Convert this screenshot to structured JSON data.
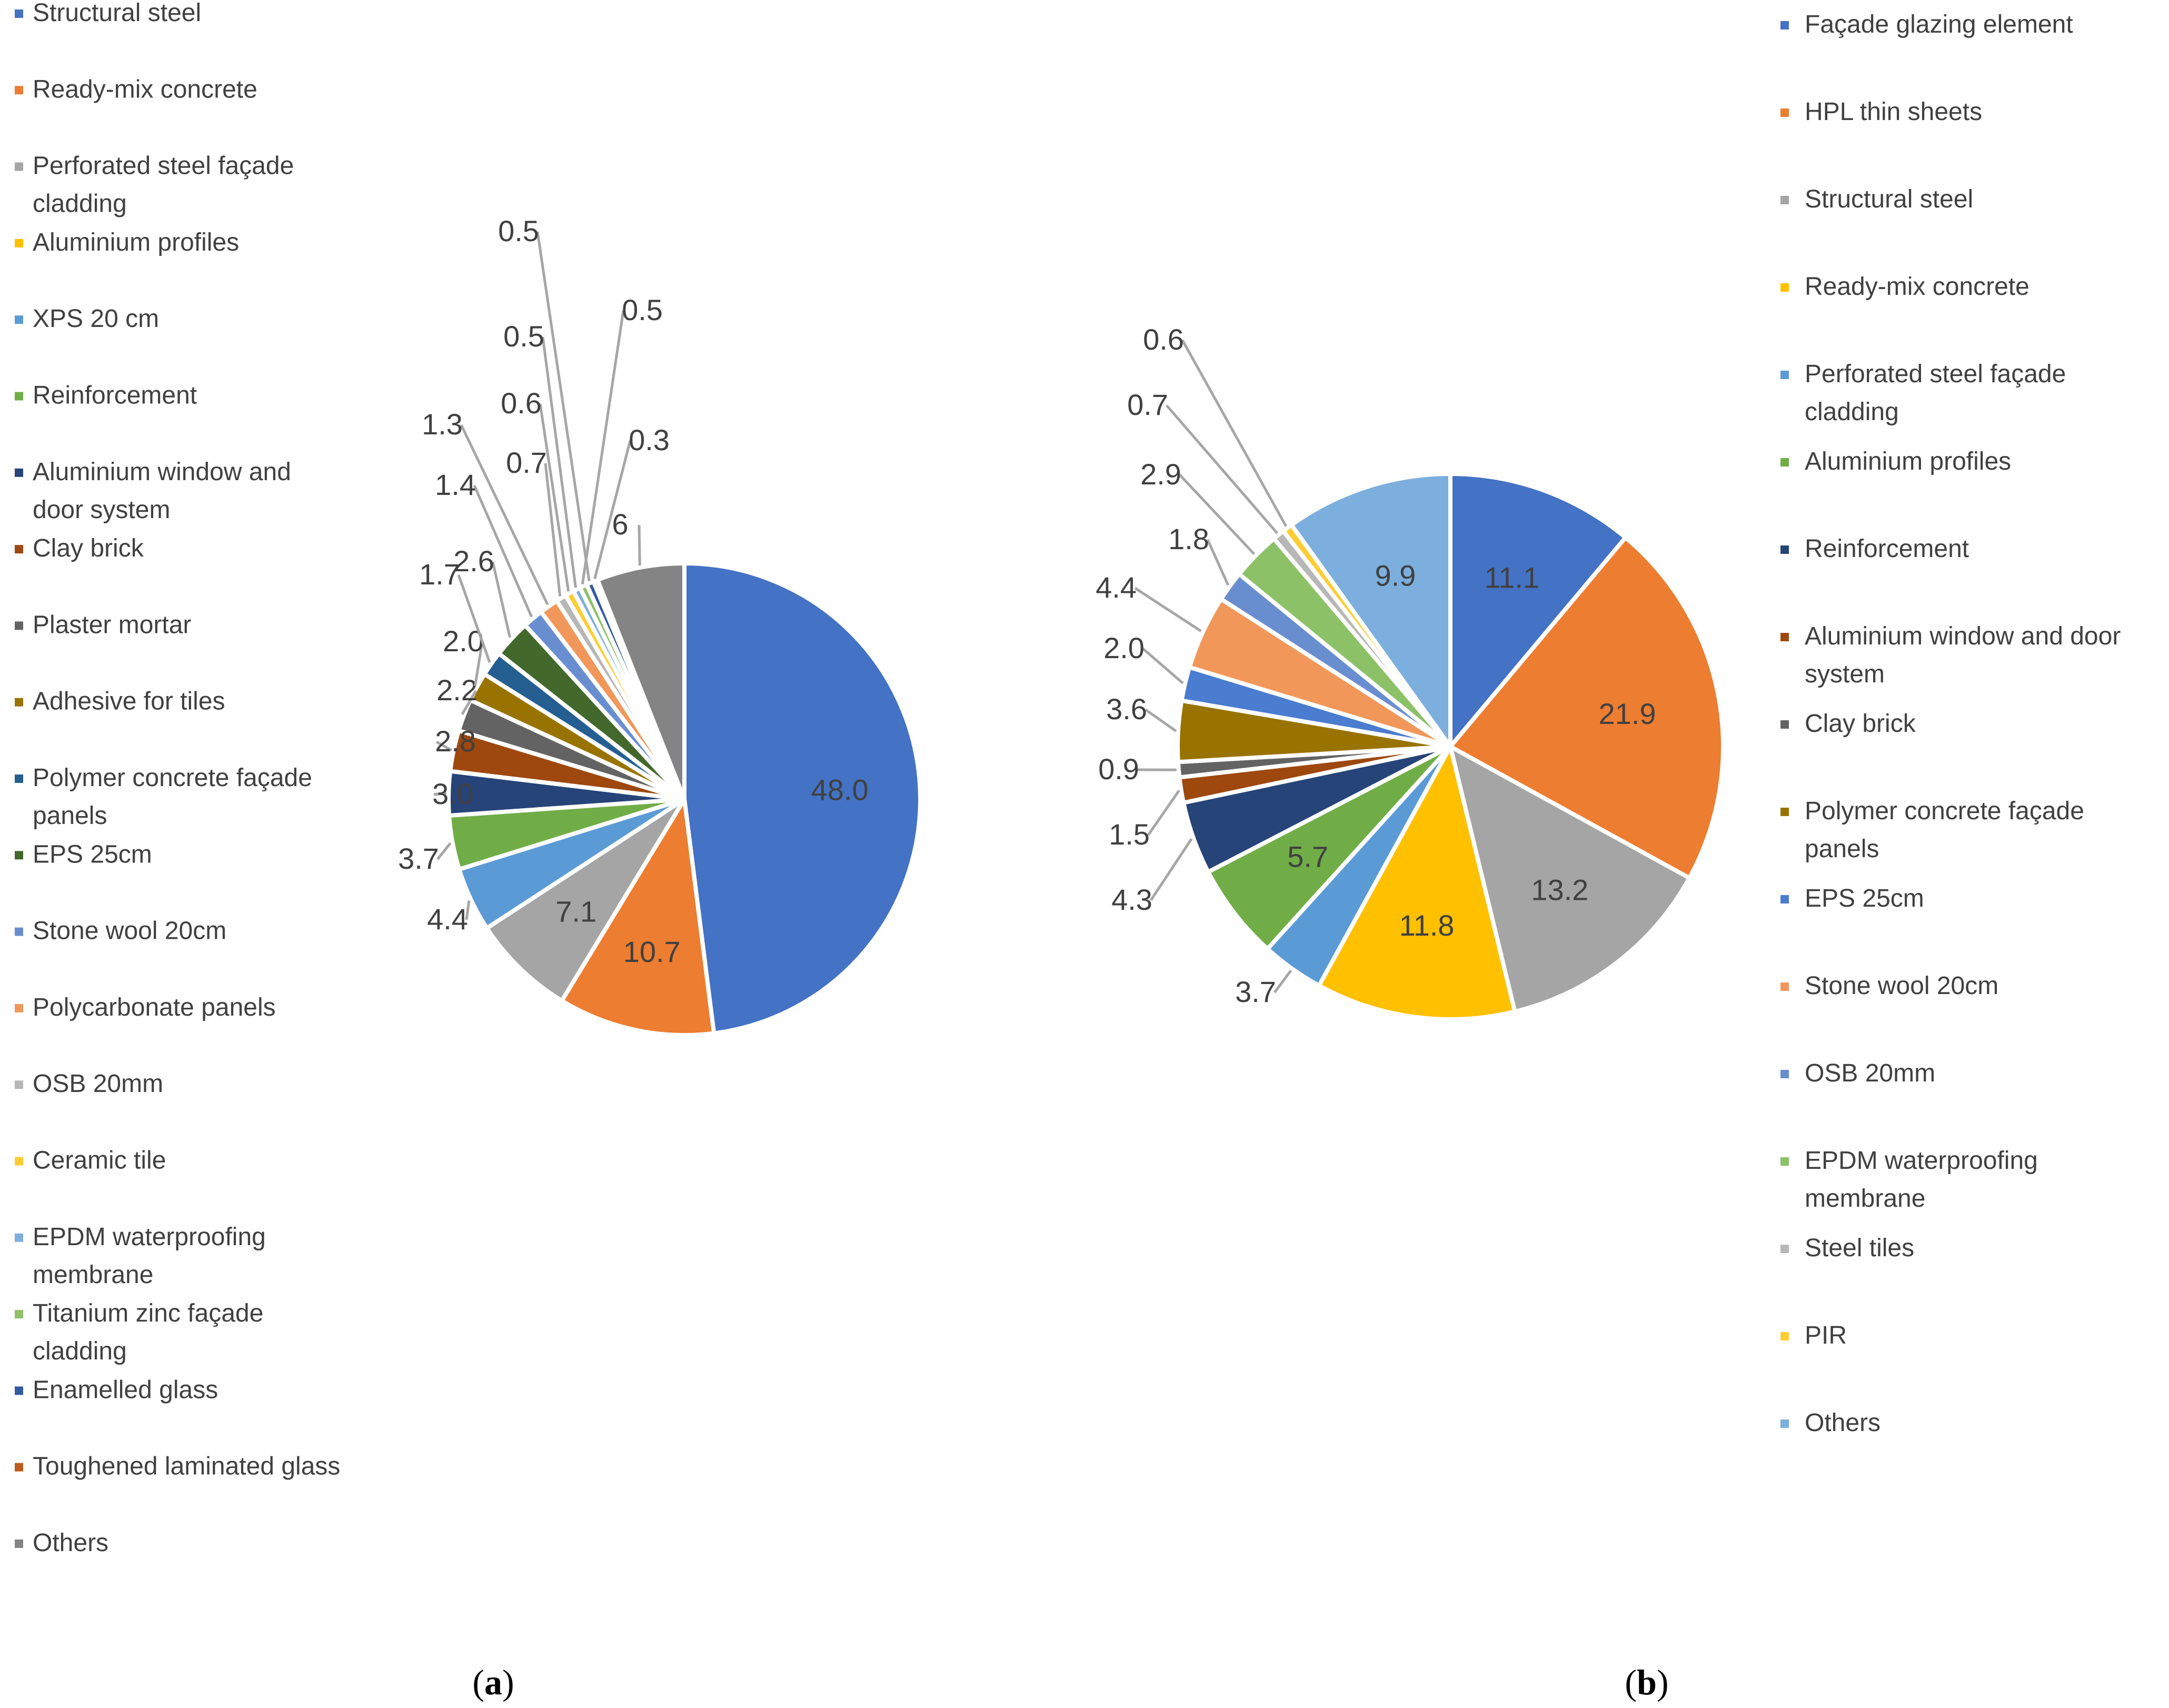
{
  "chart_data": [
    {
      "type": "pie",
      "panel_label": "a",
      "legend_position": "left",
      "categories": [
        "Structural steel",
        "Ready-mix concrete",
        "Perforated steel façade cladding",
        "Aluminium profiles",
        "XPS 20 cm",
        "Reinforcement",
        "Aluminium window and door system",
        "Clay brick",
        "Plaster mortar",
        "Adhesive for tiles",
        "Polymer concrete façade panels",
        "EPS 25cm",
        "Stone wool 20cm",
        "Polycarbonate panels",
        "OSB 20mm",
        "Ceramic tile",
        "EPDM waterproofing membrane",
        "Titanium zinc façade cladding",
        "Enamelled glass",
        "Toughened laminated glass",
        "Others"
      ],
      "legend_lines": [
        [
          "Structural steel"
        ],
        [
          "Ready-mix concrete"
        ],
        [
          "Perforated steel façade",
          "cladding"
        ],
        [
          "Aluminium profiles"
        ],
        [
          "XPS 20 cm"
        ],
        [
          "Reinforcement"
        ],
        [
          "Aluminium window and",
          "door system"
        ],
        [
          "Clay brick"
        ],
        [
          "Plaster mortar"
        ],
        [
          "Adhesive for tiles"
        ],
        [
          "Polymer concrete façade",
          "panels"
        ],
        [
          "EPS 25cm"
        ],
        [
          "Stone wool 20cm"
        ],
        [
          "Polycarbonate panels"
        ],
        [
          "OSB 20mm"
        ],
        [
          "Ceramic tile"
        ],
        [
          "EPDM waterproofing",
          "membrane"
        ],
        [
          "Titanium zinc façade",
          "cladding"
        ],
        [
          "Enamelled glass"
        ],
        [
          "Toughened laminated glass"
        ],
        [
          "Others"
        ]
      ],
      "values": [
        48.0,
        10.7,
        7.1,
        0.0,
        4.4,
        3.7,
        3.0,
        2.8,
        2.2,
        2.0,
        1.7,
        2.6,
        1.4,
        1.3,
        0.7,
        0.6,
        0.5,
        0.5,
        0.5,
        0.3,
        6
      ],
      "labels": [
        "48.0",
        "10.7",
        "7.1",
        "",
        "4.4",
        "3.7",
        "3.0",
        "2.8",
        "2.2",
        "2.0",
        "1.7",
        "2.6",
        "1.4",
        "1.3",
        "0.7",
        "0.6",
        "0.5",
        "0.5",
        "0.5",
        "0.3",
        "6"
      ],
      "colors": [
        "#4472C4",
        "#ED7D31",
        "#A5A5A5",
        "#FFC000",
        "#5B9BD5",
        "#70AD47",
        "#264478",
        "#9E480E",
        "#636363",
        "#997300",
        "#255E91",
        "#43682B",
        "#698ED0",
        "#F1975A",
        "#B7B7B7",
        "#FFCD33",
        "#7CAFDD",
        "#8CC168",
        "#335AA1",
        "#BE5A1D",
        "#848484"
      ]
    },
    {
      "type": "pie",
      "panel_label": "b",
      "legend_position": "right",
      "categories": [
        "Façade glazing element",
        "HPL thin sheets",
        "Structural steel",
        "Ready-mix concrete",
        "Perforated steel façade cladding",
        "Aluminium profiles",
        "Reinforcement",
        "Aluminium window and door system",
        "Clay brick",
        "Polymer concrete façade panels",
        "EPS 25cm",
        "Stone wool 20cm",
        "OSB 20mm",
        "EPDM waterproofing membrane",
        "Steel tiles",
        "PIR",
        "Others"
      ],
      "legend_lines": [
        [
          "Façade glazing element"
        ],
        [
          "HPL thin sheets"
        ],
        [
          "Structural steel"
        ],
        [
          "Ready-mix concrete"
        ],
        [
          "Perforated steel façade",
          "cladding"
        ],
        [
          "Aluminium profiles"
        ],
        [
          "Reinforcement"
        ],
        [
          "Aluminium window and door",
          "system"
        ],
        [
          "Clay brick"
        ],
        [
          "Polymer concrete façade",
          "panels"
        ],
        [
          "EPS 25cm"
        ],
        [
          "Stone wool 20cm"
        ],
        [
          "OSB 20mm"
        ],
        [
          "EPDM waterproofing",
          "membrane"
        ],
        [
          "Steel tiles"
        ],
        [
          "PIR"
        ],
        [
          "Others"
        ]
      ],
      "values": [
        11.1,
        21.9,
        13.2,
        11.8,
        3.7,
        5.7,
        4.3,
        1.5,
        0.9,
        3.6,
        2.0,
        4.4,
        1.8,
        2.9,
        0.7,
        0.6,
        9.9
      ],
      "labels": [
        "11.1",
        "21.9",
        "13.2",
        "11.8",
        "3.7",
        "5.7",
        "4.3",
        "1.5",
        "0.9",
        "3.6",
        "2.0",
        "4.4",
        "1.8",
        "2.9",
        "0.7",
        "0.6",
        "9.9"
      ],
      "colors": [
        "#4472C4",
        "#ED7D31",
        "#A5A5A5",
        "#FFC000",
        "#5B9BD5",
        "#70AD47",
        "#264478",
        "#9E480E",
        "#636363",
        "#997300",
        "#4A7CCF",
        "#F1975A",
        "#698ED0",
        "#8CC168",
        "#B7B7B7",
        "#FFCD33",
        "#7CAFDD"
      ]
    }
  ]
}
